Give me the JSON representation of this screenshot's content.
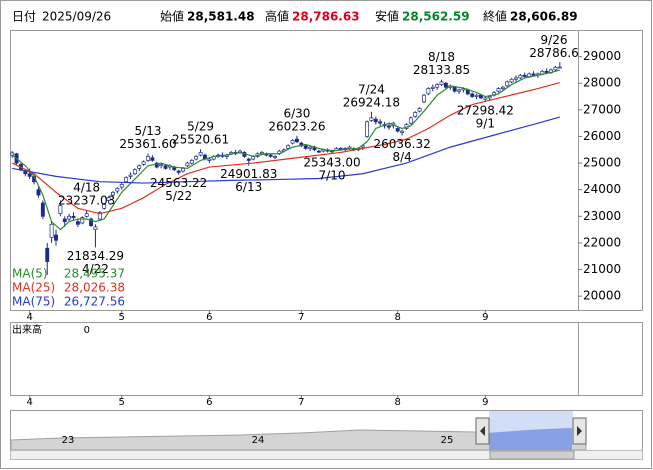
{
  "header": {
    "date_label": "日付",
    "date": "2025/09/26",
    "fields": [
      {
        "label": "始値",
        "value": "28,581.48",
        "color": "#000000"
      },
      {
        "label": "高値",
        "value": "28,786.63",
        "color": "#e0001a"
      },
      {
        "label": "安値",
        "value": "28,562.59",
        "color": "#00862b"
      },
      {
        "label": "終値",
        "value": "28,606.89",
        "color": "#000000"
      }
    ]
  },
  "chart_data": {
    "type": "candlestick",
    "categories": [
      null,
      null,
      null,
      null,
      "4",
      null,
      null,
      null,
      null,
      null,
      null,
      null,
      null,
      null,
      null,
      null,
      null,
      null,
      null,
      null,
      null,
      null,
      null,
      null,
      null,
      "5",
      null,
      null,
      null,
      null,
      null,
      null,
      null,
      null,
      null,
      null,
      null,
      null,
      null,
      null,
      null,
      null,
      null,
      null,
      null,
      "6",
      null,
      null,
      null,
      null,
      null,
      null,
      null,
      null,
      null,
      null,
      null,
      null,
      null,
      null,
      null,
      null,
      null,
      null,
      null,
      null,
      "7",
      null,
      null,
      null,
      null,
      null,
      null,
      null,
      null,
      null,
      null,
      null,
      null,
      null,
      null,
      null,
      null,
      null,
      null,
      null,
      null,
      null,
      "8",
      null,
      null,
      null,
      null,
      null,
      null,
      null,
      null,
      null,
      null,
      null,
      null,
      null,
      null,
      null,
      null,
      null,
      null,
      null,
      "9",
      null,
      null,
      null,
      null,
      null,
      null,
      null,
      null,
      null,
      null,
      null,
      null,
      null,
      null,
      null,
      null,
      null
    ],
    "ohlc": [
      [
        25300,
        25450,
        25200,
        25380
      ],
      [
        25350,
        25380,
        24950,
        25000
      ],
      [
        24950,
        25000,
        24700,
        24750
      ],
      [
        24700,
        24750,
        24500,
        24600
      ],
      [
        24600,
        24800,
        24400,
        24500
      ],
      [
        24500,
        24600,
        24200,
        24300
      ],
      [
        24000,
        24100,
        23700,
        23800
      ],
      [
        23500,
        23600,
        22900,
        23000
      ],
      [
        21800,
        22000,
        20800,
        21300
      ],
      [
        22200,
        22800,
        22000,
        22700
      ],
      [
        22300,
        22500,
        21900,
        22100
      ],
      [
        23100,
        23600,
        23000,
        23400
      ],
      [
        22900,
        23000,
        22600,
        22800
      ],
      [
        22900,
        23100,
        22800,
        23000
      ],
      [
        23000,
        23150,
        22850,
        22950
      ],
      [
        22800,
        22900,
        22600,
        22700
      ],
      [
        22750,
        23000,
        22700,
        22950
      ],
      [
        23000,
        23237.03,
        22950,
        23100
      ],
      [
        22900,
        22950,
        22600,
        22650
      ],
      [
        22500,
        22700,
        21834.29,
        22600
      ],
      [
        22900,
        23200,
        22850,
        23150
      ],
      [
        23300,
        23500,
        23250,
        23450
      ],
      [
        23600,
        23750,
        23500,
        23700
      ],
      [
        23800,
        23950,
        23700,
        23900
      ],
      [
        23950,
        24100,
        23850,
        24050
      ],
      [
        24100,
        24250,
        24000,
        24200
      ],
      [
        24300,
        24500,
        24250,
        24450
      ],
      [
        24500,
        24650,
        24400,
        24550
      ],
      [
        24600,
        24800,
        24550,
        24750
      ],
      [
        24800,
        24950,
        24700,
        24900
      ],
      [
        24950,
        25100,
        24900,
        25050
      ],
      [
        25100,
        25361.6,
        25050,
        25250
      ],
      [
        25200,
        25300,
        25050,
        25100
      ],
      [
        25000,
        25050,
        24800,
        24850
      ],
      [
        24900,
        25000,
        24800,
        24950
      ],
      [
        24900,
        24950,
        24750,
        24800
      ],
      [
        24850,
        24950,
        24750,
        24900
      ],
      [
        24850,
        24900,
        24700,
        24750
      ],
      [
        24700,
        24750,
        24563.22,
        24650
      ],
      [
        24700,
        24850,
        24650,
        24800
      ],
      [
        24900,
        25050,
        24850,
        25000
      ],
      [
        25000,
        25150,
        24950,
        25100
      ],
      [
        25150,
        25300,
        25100,
        25250
      ],
      [
        25300,
        25520.61,
        25250,
        25400
      ],
      [
        25300,
        25350,
        25100,
        25150
      ],
      [
        25100,
        25200,
        25000,
        25150
      ],
      [
        25150,
        25300,
        25100,
        25250
      ],
      [
        25250,
        25350,
        25200,
        25300
      ],
      [
        25300,
        25400,
        25200,
        25250
      ],
      [
        25250,
        25350,
        25150,
        25300
      ],
      [
        25350,
        25450,
        25300,
        25400
      ],
      [
        25400,
        25500,
        25300,
        25350
      ],
      [
        25400,
        25500,
        25350,
        25450
      ],
      [
        25400,
        25450,
        25200,
        25250
      ],
      [
        25150,
        25200,
        24901.83,
        25100
      ],
      [
        25150,
        25300,
        25100,
        25250
      ],
      [
        25250,
        25400,
        25200,
        25350
      ],
      [
        25350,
        25450,
        25300,
        25400
      ],
      [
        25350,
        25400,
        25250,
        25300
      ],
      [
        25300,
        25350,
        25200,
        25250
      ],
      [
        25200,
        25300,
        25150,
        25250
      ],
      [
        25350,
        25500,
        25300,
        25450
      ],
      [
        25450,
        25550,
        25400,
        25500
      ],
      [
        25550,
        25700,
        25500,
        25650
      ],
      [
        25750,
        25900,
        25700,
        25850
      ],
      [
        25900,
        26023.26,
        25750,
        25800
      ],
      [
        25750,
        25800,
        25600,
        25650
      ],
      [
        25650,
        25700,
        25500,
        25550
      ],
      [
        25550,
        25650,
        25450,
        25600
      ],
      [
        25600,
        25650,
        25450,
        25500
      ],
      [
        25450,
        25500,
        25380,
        25420
      ],
      [
        25450,
        25550,
        25400,
        25500
      ],
      [
        25500,
        25550,
        25400,
        25450
      ],
      [
        25420,
        25500,
        25343,
        25480
      ],
      [
        25480,
        25600,
        25450,
        25550
      ],
      [
        25550,
        25600,
        25450,
        25500
      ],
      [
        25500,
        25600,
        25450,
        25550
      ],
      [
        25550,
        25650,
        25500,
        25600
      ],
      [
        25550,
        25600,
        25450,
        25500
      ],
      [
        25500,
        25600,
        25450,
        25550
      ],
      [
        25600,
        25700,
        25500,
        25650
      ],
      [
        26000,
        26600,
        25950,
        26550
      ],
      [
        26600,
        26924.18,
        26550,
        26700
      ],
      [
        26650,
        26750,
        26450,
        26550
      ],
      [
        26550,
        26650,
        26400,
        26500
      ],
      [
        26450,
        26550,
        26300,
        26400
      ],
      [
        26400,
        26500,
        26250,
        26350
      ],
      [
        26400,
        26550,
        26300,
        26500
      ],
      [
        26300,
        26350,
        26150,
        26200
      ],
      [
        26150,
        26250,
        26036.32,
        26200
      ],
      [
        26300,
        26500,
        26250,
        26450
      ],
      [
        26500,
        26750,
        26450,
        26700
      ],
      [
        26750,
        26950,
        26700,
        26900
      ],
      [
        26950,
        27100,
        26900,
        27050
      ],
      [
        27300,
        27600,
        27250,
        27550
      ],
      [
        27600,
        27850,
        27550,
        27800
      ],
      [
        27800,
        27950,
        27700,
        27850
      ],
      [
        27850,
        28000,
        27750,
        27950
      ],
      [
        27950,
        28133.85,
        27900,
        28050
      ],
      [
        28000,
        28050,
        27800,
        27850
      ],
      [
        27850,
        27950,
        27750,
        27900
      ],
      [
        27850,
        27900,
        27650,
        27700
      ],
      [
        27700,
        27800,
        27600,
        27750
      ],
      [
        27750,
        27850,
        27650,
        27800
      ],
      [
        27750,
        27800,
        27550,
        27600
      ],
      [
        27600,
        27650,
        27450,
        27500
      ],
      [
        27500,
        27600,
        27400,
        27550
      ],
      [
        27550,
        27600,
        27400,
        27450
      ],
      [
        27400,
        27500,
        27298.42,
        27450
      ],
      [
        27450,
        27550,
        27350,
        27500
      ],
      [
        27550,
        27700,
        27500,
        27650
      ],
      [
        27700,
        27850,
        27650,
        27800
      ],
      [
        27800,
        27900,
        27700,
        27850
      ],
      [
        27900,
        28100,
        27850,
        28050
      ],
      [
        28050,
        28200,
        28000,
        28150
      ],
      [
        28150,
        28300,
        28050,
        28200
      ],
      [
        28200,
        28350,
        28150,
        28300
      ],
      [
        28300,
        28400,
        28200,
        28250
      ],
      [
        28250,
        28400,
        28200,
        28350
      ],
      [
        28350,
        28450,
        28250,
        28300
      ],
      [
        28300,
        28400,
        28200,
        28350
      ],
      [
        28350,
        28500,
        28300,
        28450
      ],
      [
        28450,
        28550,
        28350,
        28400
      ],
      [
        28400,
        28550,
        28350,
        28500
      ],
      [
        28500,
        28650,
        28450,
        28600
      ],
      [
        28581.48,
        28786.63,
        28562.59,
        28606.89
      ]
    ],
    "up_color": "#ffffff",
    "down_color": "#1c2a8c",
    "edge_color": "#1c2a8c",
    "ylim": [
      19480,
      30000
    ],
    "yticks": [
      20000,
      21000,
      22000,
      23000,
      24000,
      25000,
      26000,
      27000,
      28000,
      29000
    ],
    "grid": false,
    "legend": "lower left",
    "series": [
      {
        "name": "MA(5)",
        "color": "#2e8b2e",
        "legend_value": "28,495.37",
        "x": [
          0,
          3,
          5,
          7,
          9,
          11,
          13,
          15,
          17,
          19,
          21,
          23,
          25,
          28,
          31,
          34,
          37,
          40,
          43,
          46,
          49,
          52,
          55,
          58,
          61,
          64,
          67,
          70,
          73,
          76,
          79,
          81,
          83,
          86,
          89,
          91,
          94,
          97,
          100,
          103,
          106,
          108,
          111,
          114,
          117,
          120,
          123,
          125
        ],
        "values": [
          25300,
          24900,
          24500,
          23800,
          22800,
          22500,
          22800,
          22900,
          22900,
          22800,
          22900,
          23400,
          23900,
          24400,
          24900,
          25000,
          24850,
          24800,
          25100,
          25250,
          25300,
          25400,
          25250,
          25350,
          25350,
          25600,
          25700,
          25550,
          25450,
          25520,
          25550,
          25800,
          26300,
          26500,
          26300,
          26400,
          26950,
          27550,
          27900,
          27820,
          27650,
          27500,
          27600,
          27950,
          28200,
          28300,
          28400,
          28495.37
        ]
      },
      {
        "name": "MA(25)",
        "color": "#e03020",
        "legend_value": "28,026.38",
        "x": [
          0,
          5,
          10,
          15,
          20,
          25,
          30,
          35,
          40,
          45,
          55,
          65,
          75,
          85,
          90,
          95,
          100,
          105,
          110,
          115,
          120,
          125
        ],
        "values": [
          25000,
          24600,
          23900,
          23300,
          23100,
          23300,
          23700,
          24200,
          24600,
          24850,
          25000,
          25200,
          25400,
          25700,
          25900,
          26300,
          26800,
          27200,
          27400,
          27600,
          27800,
          28026.38
        ]
      },
      {
        "name": "MA(75)",
        "color": "#2a3ad0",
        "legend_value": "26,727.56",
        "x": [
          0,
          10,
          20,
          30,
          40,
          50,
          60,
          70,
          80,
          90,
          100,
          110,
          120,
          125
        ],
        "values": [
          24800,
          24500,
          24300,
          24250,
          24300,
          24350,
          24380,
          24420,
          24600,
          25000,
          25600,
          26050,
          26500,
          26727.56
        ]
      }
    ],
    "annotations": [
      {
        "index": 17,
        "date": "4/18",
        "value": 23237.03
      },
      {
        "index": 19,
        "date": "4/22",
        "value": 21834.29
      },
      {
        "index": 31,
        "date": "5/13",
        "value": 25361.6,
        "label": "25361.60"
      },
      {
        "index": 38,
        "date": "5/22",
        "value": 24563.22
      },
      {
        "index": 43,
        "date": "5/29",
        "value": 25520.61
      },
      {
        "index": 54,
        "date": "6/13",
        "value": 24901.83
      },
      {
        "index": 65,
        "date": "6/30",
        "value": 26023.26
      },
      {
        "index": 73,
        "date": "7/10",
        "value": 25343,
        "label": "25343.00"
      },
      {
        "index": 82,
        "date": "7/24",
        "value": 26924.18
      },
      {
        "index": 89,
        "date": "8/4",
        "value": 26036.32
      },
      {
        "index": 98,
        "date": "8/18",
        "value": 28133.85
      },
      {
        "index": 108,
        "date": "9/1",
        "value": 27298.42
      },
      {
        "index": 125,
        "date": "9/26",
        "value": 28786.6
      }
    ]
  },
  "volume_panel": {
    "title": "出来高",
    "value": 0
  },
  "navigator": {
    "year_labels": [
      "23",
      "24",
      "25"
    ]
  }
}
